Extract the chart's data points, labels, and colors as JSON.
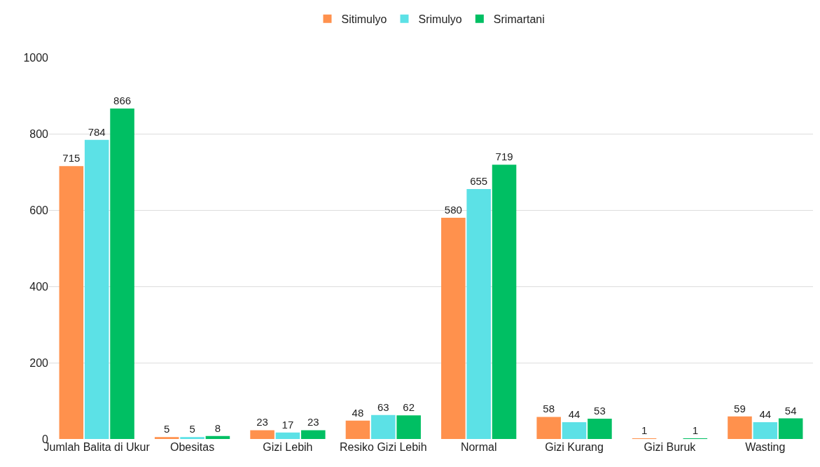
{
  "chart_data": {
    "type": "bar",
    "categories": [
      "Jumlah Balita di Ukur",
      "Obesitas",
      "Gizi Lebih",
      "Resiko Gizi Lebih",
      "Normal",
      "Gizi Kurang",
      "Gizi Buruk",
      "Wasting"
    ],
    "series": [
      {
        "name": "Sitimulyo",
        "color": "#ff914d",
        "values": [
          715,
          5,
          23,
          48,
          580,
          58,
          1,
          59
        ],
        "value_labels": [
          "715",
          "5",
          "23",
          "48",
          "580",
          "58",
          "1",
          "59"
        ]
      },
      {
        "name": "Srimulyo",
        "color": "#5ce1e6",
        "values": [
          784,
          5,
          17,
          63,
          655,
          44,
          0,
          44
        ],
        "value_labels": [
          "784",
          "5",
          "17",
          "63",
          "655",
          "44",
          null,
          "44"
        ]
      },
      {
        "name": "Srimartani",
        "color": "#00bf63",
        "values": [
          866,
          8,
          23,
          62,
          719,
          53,
          1,
          54
        ],
        "value_labels": [
          "866",
          "8",
          "23",
          "62",
          "719",
          "53",
          "1",
          "54"
        ]
      }
    ],
    "ylim": [
      0,
      1000
    ],
    "yticks": [
      0,
      200,
      400,
      600,
      800,
      1000
    ],
    "grid": "y",
    "legend": "top"
  }
}
